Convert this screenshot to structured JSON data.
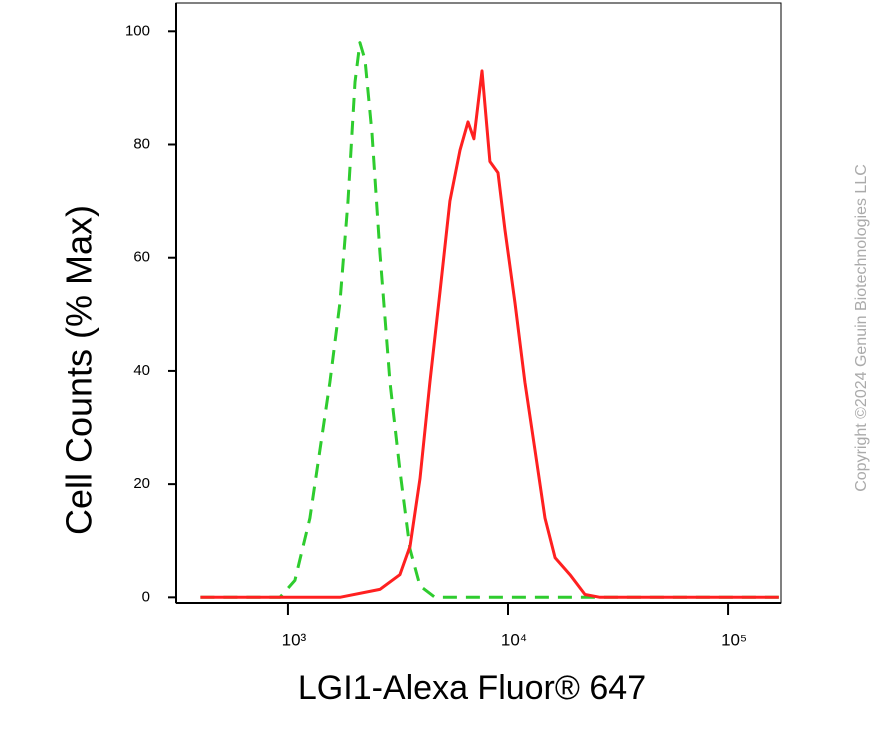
{
  "chart_data": {
    "type": "line",
    "x_label": "LGI1-Alexa Fluor® 647",
    "y_label": "Cell Counts (% Max)",
    "watermark": "Copyright ©2024 Genuin Biotechnologies LLC",
    "x_scale": "log",
    "xlim": [
      310,
      174000
    ],
    "ylim": [
      -1,
      105
    ],
    "xticks": [
      {
        "value": 1000,
        "label": "10³"
      },
      {
        "value": 10000,
        "label": "10⁴"
      },
      {
        "value": 100000,
        "label": "10⁵"
      }
    ],
    "yticks": [
      0,
      20,
      40,
      60,
      80,
      100
    ],
    "series": [
      {
        "color": "#2ecc2e",
        "style": "dashed",
        "x": [
          400,
          800,
          920,
          1076,
          1259,
          1397,
          1552,
          1723,
          1874,
          2017,
          2124,
          2239,
          2410,
          2618,
          2909,
          3228,
          3588,
          3981,
          4656,
          10000,
          170000
        ],
        "values": [
          0,
          0,
          0,
          3,
          14,
          26,
          38,
          52,
          70,
          91,
          98,
          95,
          82,
          61,
          38,
          22.5,
          8.5,
          2,
          0,
          0,
          0
        ]
      },
      {
        "color": "#ff2020",
        "style": "solid",
        "x": [
          400,
          1500,
          1723,
          2618,
          3228,
          3588,
          3981,
          4416,
          4909,
          5445,
          6053,
          6577,
          7000,
          7621,
          8279,
          9010,
          9684,
          10760,
          11940,
          13270,
          14730,
          16370,
          19140,
          22390,
          26180,
          40000,
          170000
        ],
        "values": [
          0,
          0,
          0,
          1.4,
          4,
          9,
          21,
          38,
          54,
          70,
          79,
          84,
          81,
          93,
          77,
          75,
          65,
          52,
          38,
          26,
          14,
          7,
          4,
          0.5,
          0,
          0,
          0
        ]
      }
    ]
  }
}
